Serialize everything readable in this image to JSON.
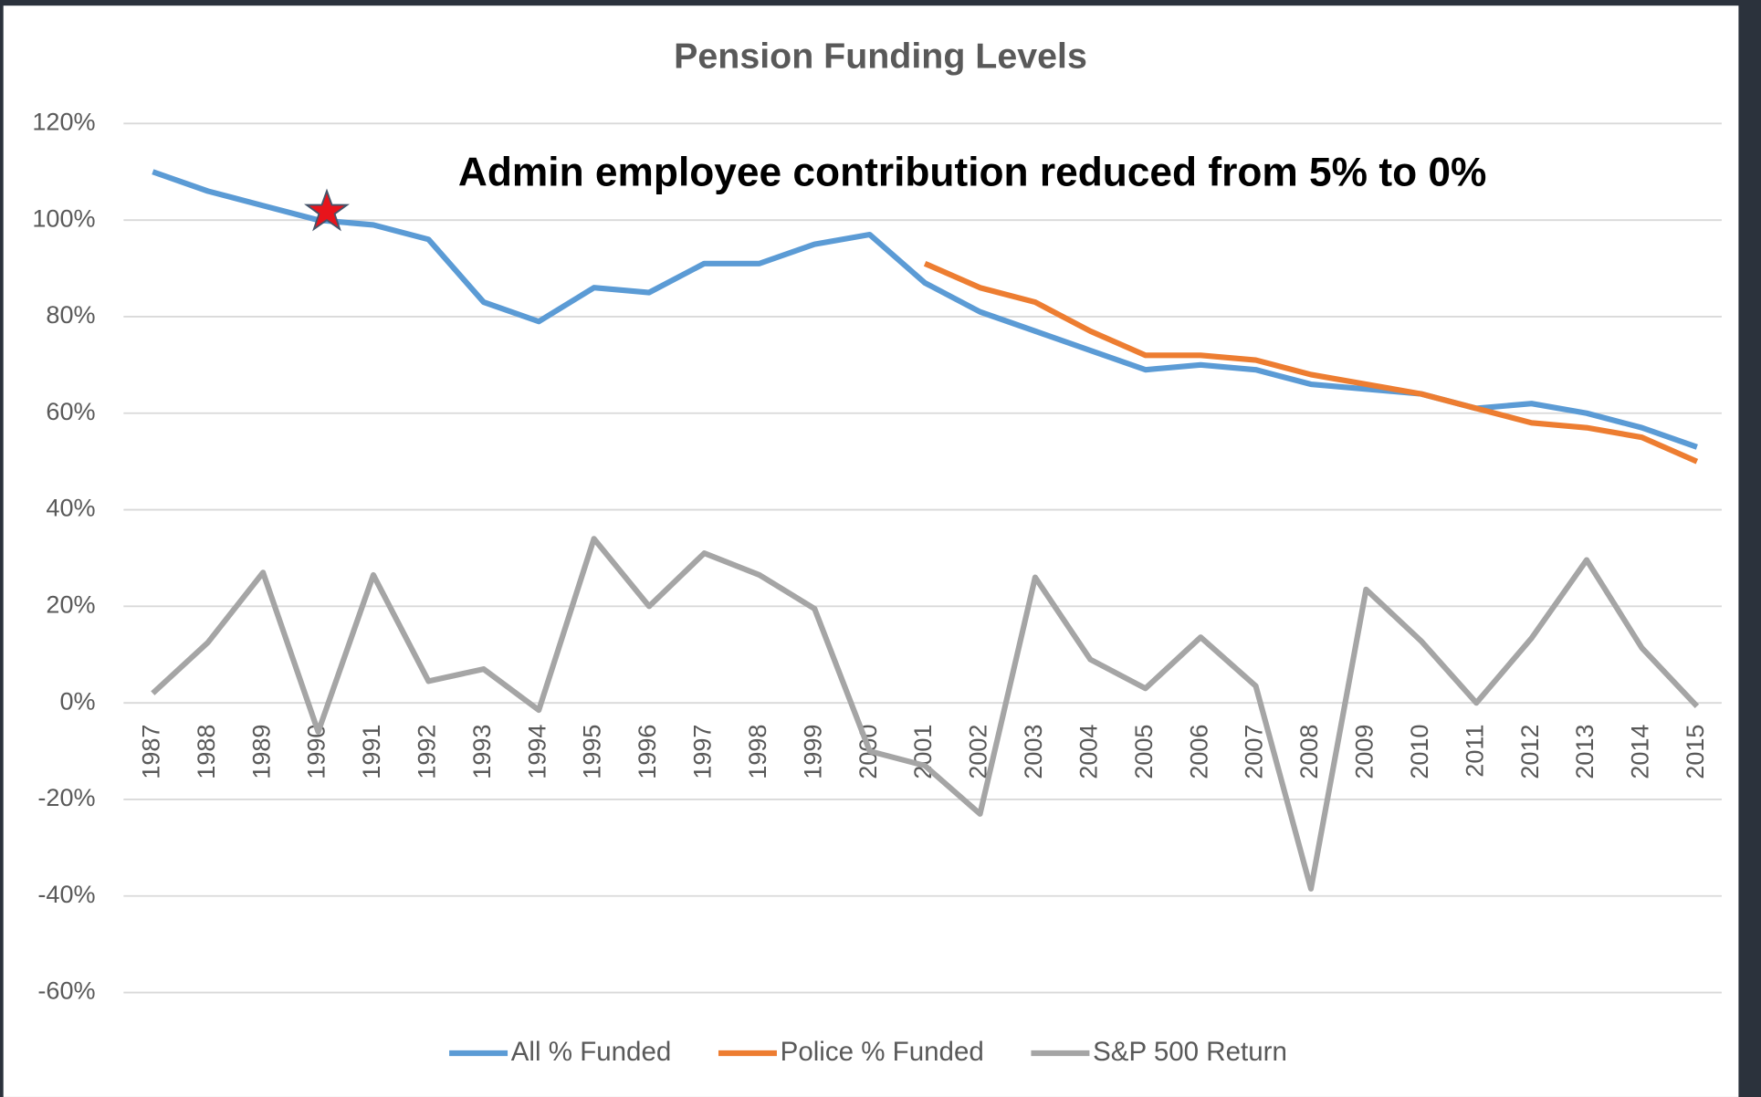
{
  "chart_data": {
    "type": "line",
    "title": "Pension Funding Levels",
    "annotation": "Admin employee contribution reduced from 5% to 0%",
    "categories": [
      "1987",
      "1988",
      "1989",
      "1990",
      "1991",
      "1992",
      "1993",
      "1994",
      "1995",
      "1996",
      "1997",
      "1998",
      "1999",
      "2000",
      "2001",
      "2002",
      "2003",
      "2004",
      "2005",
      "2006",
      "2007",
      "2008",
      "2009",
      "2010",
      "2011",
      "2012",
      "2013",
      "2014",
      "2015"
    ],
    "series": [
      {
        "name": "All % Funded",
        "color": "#5b9bd5",
        "values": [
          110,
          106,
          103,
          100,
          99,
          96,
          83,
          79,
          86,
          85,
          91,
          91,
          95,
          97,
          87,
          81,
          77,
          73,
          69,
          70,
          69,
          66,
          65,
          64,
          61,
          62,
          60,
          57,
          53
        ]
      },
      {
        "name": "Police % Funded",
        "color": "#ed7d31",
        "values": [
          null,
          null,
          null,
          null,
          null,
          null,
          null,
          null,
          null,
          null,
          null,
          null,
          null,
          null,
          91,
          86,
          83,
          77,
          72,
          72,
          71,
          68,
          66,
          64,
          61,
          58,
          57,
          55,
          50
        ]
      },
      {
        "name": "S&P 500 Return",
        "color": "#a5a5a5",
        "values": [
          2,
          12.5,
          27,
          -6,
          26.5,
          4.5,
          7,
          -1.5,
          34,
          20,
          31,
          26.5,
          19.5,
          -10,
          -13,
          -23,
          26,
          9,
          3,
          13.6,
          3.5,
          -38.5,
          23.5,
          12.8,
          0,
          13.4,
          29.6,
          11.4,
          -0.7
        ]
      }
    ],
    "ylim": [
      -60,
      120
    ],
    "yticks": [
      {
        "value": -60,
        "label": "-60%"
      },
      {
        "value": -40,
        "label": "-40%"
      },
      {
        "value": -20,
        "label": "-20%"
      },
      {
        "value": 0,
        "label": "0%"
      },
      {
        "value": 20,
        "label": "20%"
      },
      {
        "value": 40,
        "label": "40%"
      },
      {
        "value": 60,
        "label": "60%"
      },
      {
        "value": 80,
        "label": "80%"
      },
      {
        "value": 100,
        "label": "100%"
      },
      {
        "value": 120,
        "label": "120%"
      }
    ],
    "grid": true,
    "legend": "bottom"
  }
}
